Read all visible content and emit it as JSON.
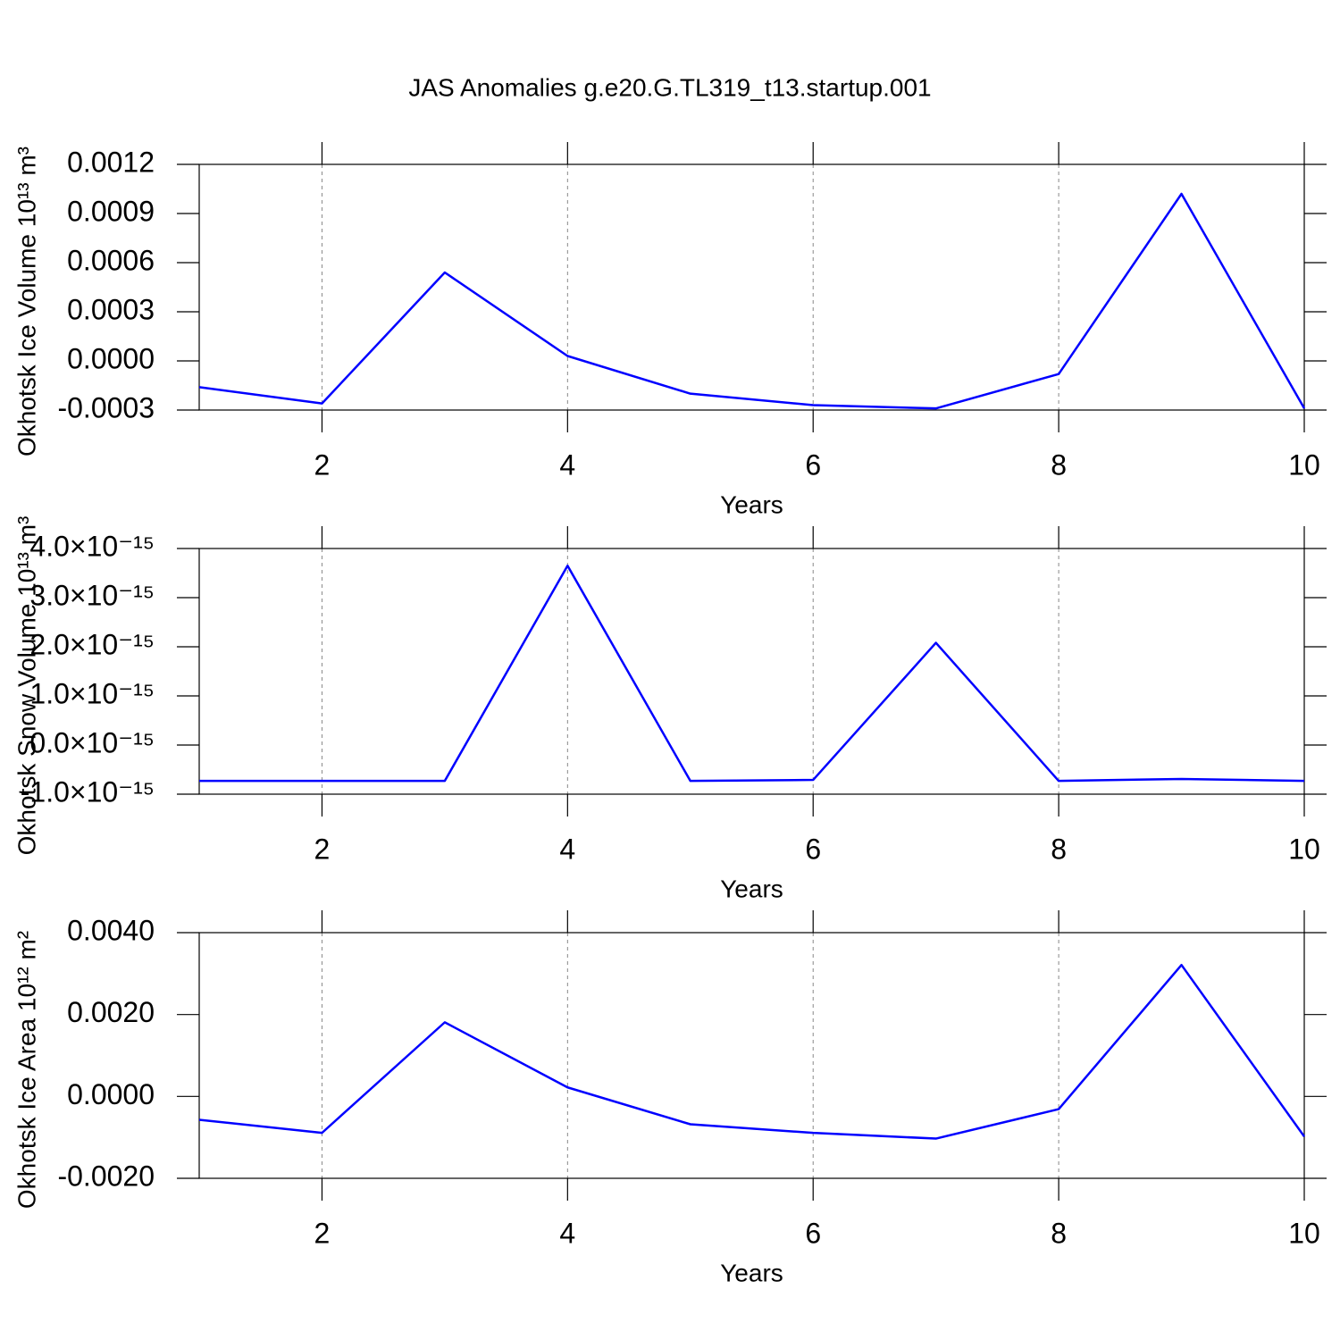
{
  "chart_data": [
    {
      "type": "line",
      "title": "JAS Anomalies g.e20.G.TL319_t13.startup.001",
      "x_label": "Years",
      "y_label": "Okhotsk Ice Volume 10¹³ m³",
      "x": [
        1,
        2,
        3,
        4,
        5,
        6,
        7,
        8,
        9,
        10
      ],
      "series": [
        {
          "color": "#0000ff",
          "values": [
            -0.00016,
            -0.00026,
            0.00054,
            3e-05,
            -0.0002,
            -0.00027,
            -0.00029,
            -8e-05,
            0.00102,
            -0.00029
          ]
        }
      ],
      "xlim": [
        1,
        10
      ],
      "xticks": [
        2,
        4,
        6,
        8,
        10
      ],
      "ylim": [
        -0.0003,
        0.0012
      ],
      "yticks": [
        {
          "value": -0.0003,
          "label": "-0.0003"
        },
        {
          "value": 0,
          "label": "0.0000"
        },
        {
          "value": 0.0003,
          "label": "0.0003"
        },
        {
          "value": 0.0006,
          "label": "0.0006"
        },
        {
          "value": 0.0009,
          "label": "0.0009"
        },
        {
          "value": 0.0012,
          "label": "0.0012"
        }
      ],
      "grid": true
    },
    {
      "type": "line",
      "x_label": "Years",
      "y_label": "Okhotsk Snow Volume 10¹³ m³",
      "x": [
        1,
        2,
        3,
        4,
        5,
        6,
        7,
        8,
        9,
        10
      ],
      "series": [
        {
          "color": "#0000ff",
          "values": [
            -7.3e-16,
            -7.3e-16,
            -7.3e-16,
            3.65e-15,
            -7.3e-16,
            -7.1e-16,
            2.08e-15,
            -7.3e-16,
            -6.9e-16,
            -7.3e-16
          ]
        }
      ],
      "xlim": [
        1,
        10
      ],
      "xticks": [
        2,
        4,
        6,
        8,
        10
      ],
      "ylim": [
        -1e-15,
        4e-15
      ],
      "yticks": [
        {
          "value": -1e-15,
          "label": "-1.0×10⁻¹⁵"
        },
        {
          "value": 0,
          "label": "0.0×10⁻¹⁵"
        },
        {
          "value": 1e-15,
          "label": "1.0×10⁻¹⁵"
        },
        {
          "value": 2e-15,
          "label": "2.0×10⁻¹⁵"
        },
        {
          "value": 3e-15,
          "label": "3.0×10⁻¹⁵"
        },
        {
          "value": 4e-15,
          "label": "4.0×10⁻¹⁵"
        }
      ],
      "grid": true
    },
    {
      "type": "line",
      "x_label": "Years",
      "y_label": "Okhotsk Ice Area 10¹² m²",
      "x": [
        1,
        2,
        3,
        4,
        5,
        6,
        7,
        8,
        9,
        10
      ],
      "series": [
        {
          "color": "#0000ff",
          "values": [
            -0.00057,
            -0.00089,
            0.00181,
            0.00022,
            -0.00068,
            -0.00089,
            -0.00103,
            -0.00031,
            0.00321,
            -0.00098
          ]
        }
      ],
      "xlim": [
        1,
        10
      ],
      "xticks": [
        2,
        4,
        6,
        8,
        10
      ],
      "ylim": [
        -0.002,
        0.004
      ],
      "yticks": [
        {
          "value": -0.002,
          "label": "-0.0020"
        },
        {
          "value": 0,
          "label": "0.0000"
        },
        {
          "value": 0.002,
          "label": "0.0020"
        },
        {
          "value": 0.004,
          "label": "0.0040"
        }
      ],
      "grid": true
    }
  ]
}
